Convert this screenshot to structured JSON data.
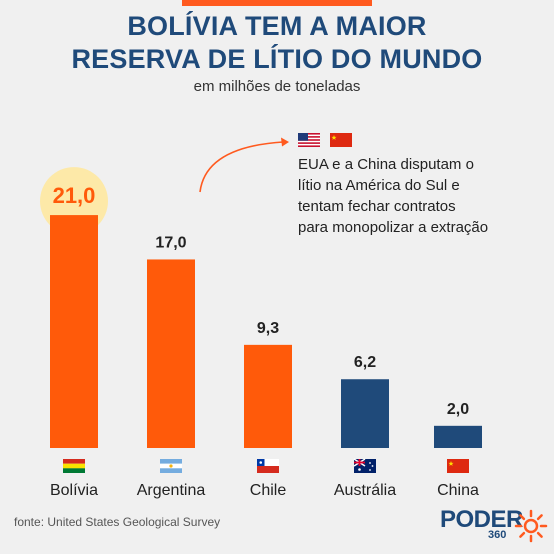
{
  "header": {
    "title_line1": "BOLÍVIA TEM A MAIOR",
    "title_line2": "RESERVA DE LÍTIO DO MUNDO",
    "subtitle": "em milhões de toneladas"
  },
  "annotation": {
    "line1": "EUA e a China disputam o",
    "line2": "lítio na América do Sul e",
    "line3": "tentam fechar contratos",
    "line4": "para monopolizar a extração",
    "flags": [
      "usa-flag-icon",
      "china-flag-icon"
    ]
  },
  "chart_data": {
    "type": "bar",
    "title": "BOLÍVIA TEM A MAIOR RESERVA DE LÍTIO DO MUNDO",
    "subtitle": "em milhões de toneladas",
    "categories": [
      "Bolívia",
      "Argentina",
      "Chile",
      "Austrália",
      "China"
    ],
    "values": [
      21.0,
      17.0,
      9.3,
      6.2,
      2.0
    ],
    "value_labels": [
      "21,0",
      "17,0",
      "9,3",
      "6,2",
      "2,0"
    ],
    "bar_colors": [
      "#ff5a0a",
      "#ff5a0a",
      "#ff5a0a",
      "#1f4a7a",
      "#1f4a7a"
    ],
    "highlight_label_color": "#ff5a0a",
    "highlight_glow_color": "#fde9a8",
    "flags": [
      "bolivia-flag-icon",
      "argentina-flag-icon",
      "chile-flag-icon",
      "australia-flag-icon",
      "china-flag-icon"
    ],
    "ylim": [
      0,
      22
    ],
    "xlabel": "",
    "ylabel": "",
    "grid": false
  },
  "footer": {
    "source": "fonte: United States Geological Survey",
    "logo_text": "PODER",
    "logo_number": "360"
  },
  "colors": {
    "background": "#f0f0f0",
    "accent": "#ff5a1f",
    "brand_blue": "#1f4a7a"
  }
}
